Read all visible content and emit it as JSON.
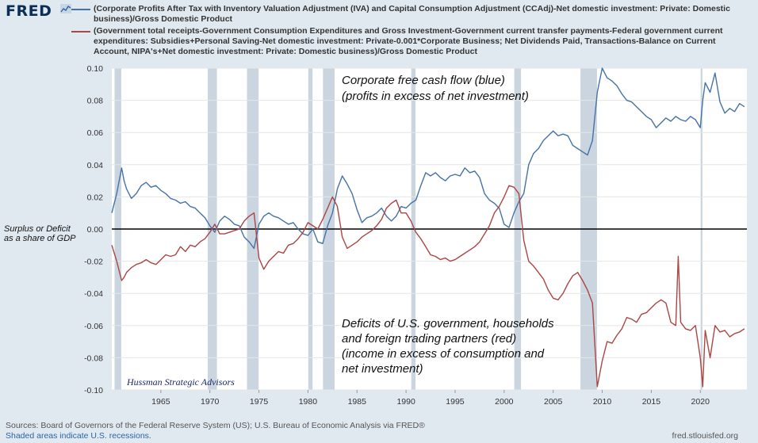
{
  "header": {
    "logo": "FRED",
    "logo_icon": "fred-sparkline-icon"
  },
  "legend": [
    {
      "color": "#4572a7",
      "text": "(Corporate Profits After Tax with Inventory Valuation Adjustment (IVA) and Capital Consumption Adjustment (CCAdj)-Net domestic investment: Private: Domestic business)/Gross Domestic Product"
    },
    {
      "color": "#aa4643",
      "text": "(Government total receipts-Government Consumption Expenditures and Gross Investment-Government current transfer payments-Federal government current expenditures: Subsidies+Personal Saving-Net domestic investment: Private-0.001*Corporate Business; Net Dividends Paid, Transactions-Balance on Current Account, NIPA's+Net domestic investment: Private: Domestic business)/Gross Domestic Product"
    }
  ],
  "footer": {
    "sources": "Sources: Board of Governors of the Federal Reserve System (US); U.S. Bureau of Economic Analysis via FRED®",
    "shaded": "Shaded areas indicate U.S. recessions.",
    "url": "fred.stlouisfed.org"
  },
  "chart_data": {
    "type": "line",
    "xlim": [
      1960.0,
      2024.75
    ],
    "ylim": [
      -0.1,
      0.1
    ],
    "y_ticks": [
      0.1,
      0.08,
      0.06,
      0.04,
      0.02,
      0.0,
      -0.02,
      -0.04,
      -0.06,
      -0.08,
      -0.1
    ],
    "y_tick_labels": [
      "0.10",
      "0.08",
      "0.06",
      "0.04",
      "0.02",
      "0.00",
      "-0.02",
      "-0.04",
      "-0.06",
      "-0.08",
      "-0.10"
    ],
    "x_ticks": [
      1965,
      1970,
      1975,
      1980,
      1985,
      1990,
      1995,
      2000,
      2005,
      2010,
      2015,
      2020
    ],
    "x_tick_labels": [
      "1965",
      "1970",
      "1975",
      "1980",
      "1985",
      "1990",
      "1995",
      "2000",
      "2005",
      "2010",
      "2015",
      "2020"
    ],
    "recessions": [
      [
        1960.25,
        1961.0
      ],
      [
        1969.75,
        1970.75
      ],
      [
        1973.75,
        1975.0
      ],
      [
        1980.0,
        1980.5
      ],
      [
        1981.5,
        1982.75
      ],
      [
        1990.5,
        1991.0
      ],
      [
        2001.0,
        2001.75
      ],
      [
        2007.75,
        2009.5
      ],
      [
        2020.0,
        2020.25
      ]
    ],
    "zero_line": 0.0,
    "annotations": [
      {
        "text": "Corporate free cash flow (blue)"
      },
      {
        "text": "(profits in excess of net investment)"
      },
      {
        "text": "Deficits of U.S. government, households"
      },
      {
        "text": "and foreign trading partners (red)"
      },
      {
        "text": "(income in excess of consumption and"
      },
      {
        "text": "net investment)"
      }
    ],
    "side_annotation": [
      "Surplus or Deficit",
      "as a share of GDP"
    ],
    "credit": "Hussman Strategic Advisors",
    "series": [
      {
        "color": "#4572a7",
        "x": [
          1960.0,
          1960.5,
          1961.0,
          1961.25,
          1961.5,
          1962.0,
          1962.5,
          1963.0,
          1963.5,
          1964.0,
          1964.5,
          1965.0,
          1965.5,
          1966.0,
          1966.5,
          1967.0,
          1967.5,
          1968.0,
          1968.5,
          1969.0,
          1969.5,
          1970.0,
          1970.5,
          1971.0,
          1971.5,
          1972.0,
          1972.5,
          1973.0,
          1973.5,
          1974.0,
          1974.5,
          1975.0,
          1975.5,
          1976.0,
          1976.5,
          1977.0,
          1977.5,
          1978.0,
          1978.5,
          1979.0,
          1979.5,
          1980.0,
          1980.5,
          1981.0,
          1981.5,
          1982.0,
          1982.5,
          1983.0,
          1983.5,
          1984.0,
          1984.5,
          1985.0,
          1985.5,
          1986.0,
          1986.5,
          1987.0,
          1987.5,
          1988.0,
          1988.5,
          1989.0,
          1989.5,
          1990.0,
          1990.5,
          1991.0,
          1991.5,
          1992.0,
          1992.5,
          1993.0,
          1993.5,
          1994.0,
          1994.5,
          1995.0,
          1995.5,
          1996.0,
          1996.5,
          1997.0,
          1997.5,
          1998.0,
          1998.5,
          1999.0,
          1999.5,
          2000.0,
          2000.5,
          2001.0,
          2001.5,
          2002.0,
          2002.5,
          2003.0,
          2003.5,
          2004.0,
          2004.5,
          2005.0,
          2005.5,
          2006.0,
          2006.5,
          2007.0,
          2007.5,
          2008.0,
          2008.5,
          2009.0,
          2009.5,
          2010.0,
          2010.5,
          2011.0,
          2011.5,
          2012.0,
          2012.5,
          2013.0,
          2013.5,
          2014.0,
          2014.5,
          2015.0,
          2015.5,
          2016.0,
          2016.5,
          2017.0,
          2017.5,
          2018.0,
          2018.5,
          2019.0,
          2019.5,
          2020.0,
          2020.25,
          2020.5,
          2021.0,
          2021.5,
          2022.0,
          2022.5,
          2023.0,
          2023.5,
          2024.0,
          2024.5
        ],
        "values": [
          0.01,
          0.022,
          0.038,
          0.03,
          0.025,
          0.019,
          0.022,
          0.027,
          0.029,
          0.026,
          0.027,
          0.024,
          0.022,
          0.019,
          0.018,
          0.016,
          0.017,
          0.014,
          0.013,
          0.01,
          0.007,
          0.002,
          -0.002,
          0.005,
          0.008,
          0.006,
          0.003,
          0.002,
          -0.005,
          -0.008,
          -0.012,
          0.003,
          0.008,
          0.01,
          0.008,
          0.007,
          0.005,
          0.003,
          0.004,
          0.0,
          -0.003,
          -0.004,
          0.0,
          -0.008,
          -0.009,
          0.002,
          0.01,
          0.025,
          0.033,
          0.028,
          0.022,
          0.012,
          0.004,
          0.007,
          0.008,
          0.01,
          0.013,
          0.008,
          0.005,
          0.008,
          0.014,
          0.013,
          0.016,
          0.018,
          0.027,
          0.035,
          0.033,
          0.035,
          0.032,
          0.03,
          0.033,
          0.034,
          0.033,
          0.038,
          0.035,
          0.036,
          0.032,
          0.022,
          0.018,
          0.016,
          0.013,
          0.003,
          0.001,
          0.01,
          0.017,
          0.022,
          0.04,
          0.047,
          0.05,
          0.055,
          0.058,
          0.061,
          0.058,
          0.059,
          0.058,
          0.052,
          0.05,
          0.048,
          0.046,
          0.055,
          0.085,
          0.1,
          0.094,
          0.092,
          0.089,
          0.084,
          0.08,
          0.079,
          0.076,
          0.073,
          0.07,
          0.068,
          0.063,
          0.066,
          0.069,
          0.067,
          0.07,
          0.068,
          0.067,
          0.07,
          0.068,
          0.063,
          0.08,
          0.091,
          0.085,
          0.097,
          0.079,
          0.072,
          0.075,
          0.073,
          0.078,
          0.076
        ]
      },
      {
        "color": "#aa4643",
        "x": [
          1960.0,
          1960.5,
          1961.0,
          1961.25,
          1961.5,
          1962.0,
          1962.5,
          1963.0,
          1963.5,
          1964.0,
          1964.5,
          1965.0,
          1965.5,
          1966.0,
          1966.5,
          1967.0,
          1967.5,
          1968.0,
          1968.5,
          1969.0,
          1969.5,
          1970.0,
          1970.5,
          1971.0,
          1971.5,
          1972.0,
          1972.5,
          1973.0,
          1973.5,
          1974.0,
          1974.5,
          1975.0,
          1975.5,
          1976.0,
          1976.5,
          1977.0,
          1977.5,
          1978.0,
          1978.5,
          1979.0,
          1979.5,
          1980.0,
          1980.5,
          1981.0,
          1981.5,
          1982.0,
          1982.5,
          1983.0,
          1983.5,
          1984.0,
          1984.5,
          1985.0,
          1985.5,
          1986.0,
          1986.5,
          1987.0,
          1987.5,
          1988.0,
          1988.5,
          1989.0,
          1989.5,
          1990.0,
          1990.5,
          1991.0,
          1991.5,
          1992.0,
          1992.5,
          1993.0,
          1993.5,
          1994.0,
          1994.5,
          1995.0,
          1995.5,
          1996.0,
          1996.5,
          1997.0,
          1997.5,
          1998.0,
          1998.5,
          1999.0,
          1999.5,
          2000.0,
          2000.5,
          2001.0,
          2001.5,
          2002.0,
          2002.5,
          2003.0,
          2003.5,
          2004.0,
          2004.5,
          2005.0,
          2005.5,
          2006.0,
          2006.5,
          2007.0,
          2007.5,
          2008.0,
          2008.5,
          2009.0,
          2009.5,
          2010.0,
          2010.5,
          2011.0,
          2011.5,
          2012.0,
          2012.5,
          2013.0,
          2013.5,
          2014.0,
          2014.5,
          2015.0,
          2015.5,
          2016.0,
          2016.5,
          2017.0,
          2017.5,
          2017.75,
          2018.0,
          2018.5,
          2019.0,
          2019.5,
          2020.0,
          2020.25,
          2020.5,
          2021.0,
          2021.5,
          2022.0,
          2022.5,
          2023.0,
          2023.5,
          2024.0,
          2024.5
        ],
        "values": [
          -0.01,
          -0.02,
          -0.032,
          -0.03,
          -0.027,
          -0.024,
          -0.022,
          -0.021,
          -0.019,
          -0.021,
          -0.022,
          -0.019,
          -0.016,
          -0.017,
          -0.016,
          -0.011,
          -0.014,
          -0.01,
          -0.011,
          -0.008,
          -0.006,
          -0.002,
          0.003,
          -0.003,
          -0.003,
          -0.002,
          -0.001,
          0.0,
          0.005,
          0.008,
          0.01,
          -0.018,
          -0.025,
          -0.02,
          -0.017,
          -0.014,
          -0.015,
          -0.01,
          -0.009,
          -0.006,
          -0.002,
          0.004,
          0.002,
          0.0,
          0.006,
          0.013,
          0.02,
          0.014,
          -0.005,
          -0.012,
          -0.01,
          -0.008,
          -0.005,
          -0.003,
          -0.001,
          0.002,
          0.006,
          0.013,
          0.016,
          0.018,
          0.01,
          0.01,
          0.005,
          -0.002,
          -0.006,
          -0.011,
          -0.016,
          -0.017,
          -0.019,
          -0.018,
          -0.02,
          -0.019,
          -0.017,
          -0.015,
          -0.013,
          -0.011,
          -0.008,
          -0.003,
          0.002,
          0.01,
          0.014,
          0.02,
          0.027,
          0.026,
          0.022,
          -0.007,
          -0.02,
          -0.023,
          -0.027,
          -0.031,
          -0.038,
          -0.043,
          -0.044,
          -0.04,
          -0.034,
          -0.029,
          -0.027,
          -0.032,
          -0.038,
          -0.046,
          -0.098,
          -0.082,
          -0.07,
          -0.071,
          -0.066,
          -0.062,
          -0.055,
          -0.056,
          -0.058,
          -0.053,
          -0.052,
          -0.049,
          -0.046,
          -0.044,
          -0.046,
          -0.058,
          -0.06,
          -0.017,
          -0.058,
          -0.062,
          -0.063,
          -0.06,
          -0.08,
          -0.098,
          -0.063,
          -0.08,
          -0.06,
          -0.064,
          -0.063,
          -0.067,
          -0.065,
          -0.064,
          -0.062
        ]
      }
    ]
  }
}
